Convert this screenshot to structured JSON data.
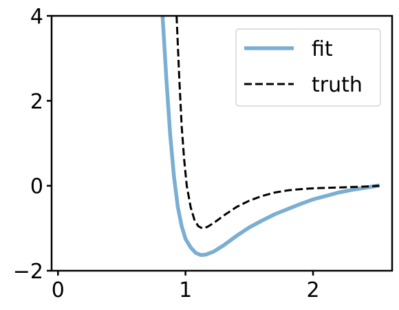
{
  "chart_data": {
    "type": "line",
    "title": "",
    "xlabel": "",
    "ylabel": "",
    "xlim": [
      -0.05,
      2.62
    ],
    "ylim": [
      -2,
      4
    ],
    "xticks": [
      {
        "value": 0,
        "label": "0"
      },
      {
        "value": 1,
        "label": "1"
      },
      {
        "value": 2,
        "label": "2"
      }
    ],
    "yticks": [
      {
        "value": -2,
        "label": "−2"
      },
      {
        "value": 0,
        "label": "0"
      },
      {
        "value": 2,
        "label": "2"
      },
      {
        "value": 4,
        "label": "4"
      }
    ],
    "grid": false,
    "legend_position": "top-right",
    "series": [
      {
        "name": "fit",
        "color": "#7aaed3",
        "style": "solid",
        "points": [
          [
            0.82,
            4.0
          ],
          [
            0.85,
            2.5
          ],
          [
            0.88,
            1.2
          ],
          [
            0.91,
            0.2
          ],
          [
            0.94,
            -0.5
          ],
          [
            0.97,
            -0.95
          ],
          [
            1.0,
            -1.25
          ],
          [
            1.04,
            -1.45
          ],
          [
            1.08,
            -1.58
          ],
          [
            1.12,
            -1.63
          ],
          [
            1.16,
            -1.62
          ],
          [
            1.22,
            -1.55
          ],
          [
            1.3,
            -1.4
          ],
          [
            1.4,
            -1.18
          ],
          [
            1.5,
            -0.98
          ],
          [
            1.6,
            -0.82
          ],
          [
            1.7,
            -0.67
          ],
          [
            1.8,
            -0.55
          ],
          [
            1.9,
            -0.43
          ],
          [
            2.0,
            -0.32
          ],
          [
            2.1,
            -0.24
          ],
          [
            2.2,
            -0.16
          ],
          [
            2.3,
            -0.1
          ],
          [
            2.4,
            -0.05
          ],
          [
            2.52,
            0.01
          ]
        ]
      },
      {
        "name": "truth",
        "color": "#000000",
        "style": "dashed",
        "points": [
          [
            0.93,
            4.0
          ],
          [
            0.95,
            2.6
          ],
          [
            0.97,
            1.4
          ],
          [
            0.99,
            0.6
          ],
          [
            1.01,
            0.0
          ],
          [
            1.04,
            -0.5
          ],
          [
            1.07,
            -0.8
          ],
          [
            1.1,
            -0.95
          ],
          [
            1.13,
            -1.0
          ],
          [
            1.17,
            -0.97
          ],
          [
            1.22,
            -0.88
          ],
          [
            1.3,
            -0.7
          ],
          [
            1.4,
            -0.5
          ],
          [
            1.5,
            -0.35
          ],
          [
            1.6,
            -0.24
          ],
          [
            1.7,
            -0.16
          ],
          [
            1.8,
            -0.11
          ],
          [
            1.9,
            -0.08
          ],
          [
            2.0,
            -0.06
          ],
          [
            2.2,
            -0.04
          ],
          [
            2.4,
            -0.02
          ],
          [
            2.52,
            0.0
          ]
        ]
      }
    ]
  }
}
